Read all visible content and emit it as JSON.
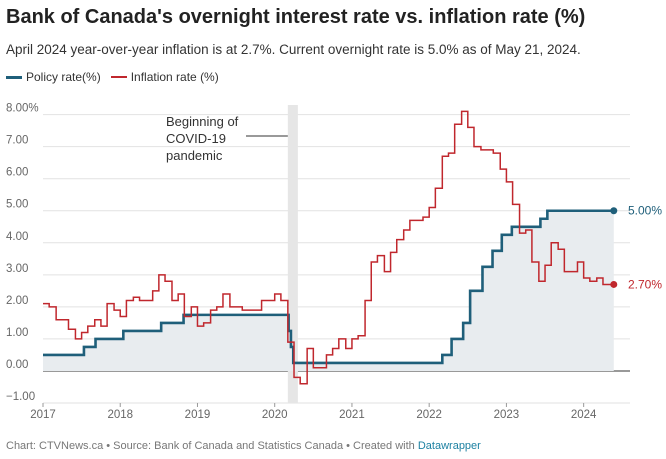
{
  "title": "Bank of Canada's overnight interest rate vs. inflation rate (%)",
  "subtitle": "April 2024 year-over-year inflation is at 2.7%. Current overnight rate is 5.0% as of May 21, 2024.",
  "legend": [
    {
      "label": "Policy rate(%)",
      "color": "#1f5f7a"
    },
    {
      "label": "Inflation rate (%)",
      "color": "#c0272d"
    }
  ],
  "footer": {
    "prefix": "Chart: CTVNews.ca • Source: Bank of Canada and Statistics Canada • Created with ",
    "brand": "Datawrapper"
  },
  "chart_data": {
    "type": "line",
    "title": "Bank of Canada's overnight interest rate vs. inflation rate (%)",
    "xlabel": "",
    "ylabel": "",
    "xlim": [
      2017.0,
      2024.6
    ],
    "ylim": [
      -1.0,
      8.3
    ],
    "y_ticks": [
      -1,
      0,
      1,
      2,
      3,
      4,
      5,
      6,
      7,
      8
    ],
    "y_tick_labels": [
      "−1.00",
      "0.00",
      "1.00",
      "2.00",
      "3.00",
      "4.00",
      "5.00",
      "6.00",
      "7.00",
      "8.00%"
    ],
    "x_ticks": [
      2017,
      2018,
      2019,
      2020,
      2021,
      2022,
      2023,
      2024
    ],
    "x_tick_labels": [
      "2017",
      "2018",
      "2019",
      "2020",
      "2021",
      "2022",
      "2023",
      "2024"
    ],
    "grid": true,
    "legend_position": "top-left",
    "series": [
      {
        "name": "Policy rate(%)",
        "color": "#1f5f7a",
        "step": true,
        "area": true,
        "points": [
          [
            2017.0,
            0.5
          ],
          [
            2017.53,
            0.75
          ],
          [
            2017.68,
            1.0
          ],
          [
            2018.04,
            1.25
          ],
          [
            2018.53,
            1.5
          ],
          [
            2018.82,
            1.75
          ],
          [
            2020.18,
            1.25
          ],
          [
            2020.21,
            0.75
          ],
          [
            2020.24,
            0.25
          ],
          [
            2022.17,
            0.5
          ],
          [
            2022.29,
            1.0
          ],
          [
            2022.44,
            1.5
          ],
          [
            2022.53,
            2.5
          ],
          [
            2022.69,
            3.25
          ],
          [
            2022.82,
            3.75
          ],
          [
            2022.94,
            4.25
          ],
          [
            2023.07,
            4.5
          ],
          [
            2023.44,
            4.75
          ],
          [
            2023.53,
            5.0
          ],
          [
            2024.39,
            5.0
          ]
        ],
        "end_label": "5.00%"
      },
      {
        "name": "Inflation rate (%)",
        "color": "#c0272d",
        "step": true,
        "area": false,
        "points": [
          [
            2017.0,
            2.1
          ],
          [
            2017.08,
            2.0
          ],
          [
            2017.17,
            1.6
          ],
          [
            2017.33,
            1.3
          ],
          [
            2017.42,
            1.3
          ],
          [
            2017.42,
            1.0
          ],
          [
            2017.5,
            1.2
          ],
          [
            2017.58,
            1.4
          ],
          [
            2017.67,
            1.6
          ],
          [
            2017.75,
            1.4
          ],
          [
            2017.83,
            2.1
          ],
          [
            2017.92,
            1.9
          ],
          [
            2018.0,
            1.7
          ],
          [
            2018.08,
            2.2
          ],
          [
            2018.17,
            2.3
          ],
          [
            2018.25,
            2.2
          ],
          [
            2018.33,
            2.2
          ],
          [
            2018.42,
            2.5
          ],
          [
            2018.5,
            3.0
          ],
          [
            2018.58,
            2.8
          ],
          [
            2018.67,
            2.2
          ],
          [
            2018.75,
            2.4
          ],
          [
            2018.83,
            1.7
          ],
          [
            2018.92,
            2.0
          ],
          [
            2019.0,
            1.4
          ],
          [
            2019.08,
            1.5
          ],
          [
            2019.17,
            1.9
          ],
          [
            2019.25,
            2.0
          ],
          [
            2019.33,
            2.4
          ],
          [
            2019.42,
            2.0
          ],
          [
            2019.5,
            2.0
          ],
          [
            2019.58,
            1.9
          ],
          [
            2019.67,
            1.9
          ],
          [
            2019.75,
            1.9
          ],
          [
            2019.83,
            2.2
          ],
          [
            2019.92,
            2.2
          ],
          [
            2020.0,
            2.4
          ],
          [
            2020.08,
            2.2
          ],
          [
            2020.17,
            0.9
          ],
          [
            2020.25,
            -0.2
          ],
          [
            2020.33,
            -0.4
          ],
          [
            2020.42,
            0.7
          ],
          [
            2020.5,
            0.1
          ],
          [
            2020.58,
            0.1
          ],
          [
            2020.67,
            0.5
          ],
          [
            2020.75,
            0.7
          ],
          [
            2020.83,
            1.0
          ],
          [
            2020.92,
            0.7
          ],
          [
            2021.0,
            1.0
          ],
          [
            2021.08,
            1.1
          ],
          [
            2021.17,
            2.2
          ],
          [
            2021.25,
            3.4
          ],
          [
            2021.33,
            3.6
          ],
          [
            2021.42,
            3.1
          ],
          [
            2021.5,
            3.7
          ],
          [
            2021.58,
            4.1
          ],
          [
            2021.67,
            4.4
          ],
          [
            2021.75,
            4.7
          ],
          [
            2021.83,
            4.7
          ],
          [
            2021.92,
            4.8
          ],
          [
            2022.0,
            5.1
          ],
          [
            2022.08,
            5.7
          ],
          [
            2022.17,
            6.7
          ],
          [
            2022.25,
            6.8
          ],
          [
            2022.33,
            7.7
          ],
          [
            2022.42,
            8.1
          ],
          [
            2022.5,
            7.6
          ],
          [
            2022.58,
            7.0
          ],
          [
            2022.67,
            6.9
          ],
          [
            2022.75,
            6.9
          ],
          [
            2022.83,
            6.8
          ],
          [
            2022.92,
            6.3
          ],
          [
            2023.0,
            5.9
          ],
          [
            2023.08,
            5.2
          ],
          [
            2023.17,
            4.3
          ],
          [
            2023.25,
            4.4
          ],
          [
            2023.33,
            3.4
          ],
          [
            2023.42,
            2.8
          ],
          [
            2023.5,
            3.3
          ],
          [
            2023.58,
            4.0
          ],
          [
            2023.67,
            3.8
          ],
          [
            2023.75,
            3.1
          ],
          [
            2023.83,
            3.1
          ],
          [
            2023.92,
            3.4
          ],
          [
            2024.0,
            2.9
          ],
          [
            2024.08,
            2.8
          ],
          [
            2024.17,
            2.9
          ],
          [
            2024.25,
            2.7
          ],
          [
            2024.39,
            2.7
          ]
        ],
        "end_label": "2.70%"
      }
    ],
    "annotation": {
      "lines": [
        "Beginning of",
        "COVID-19",
        "pandemic"
      ],
      "band": [
        2020.17,
        2020.3
      ]
    }
  }
}
